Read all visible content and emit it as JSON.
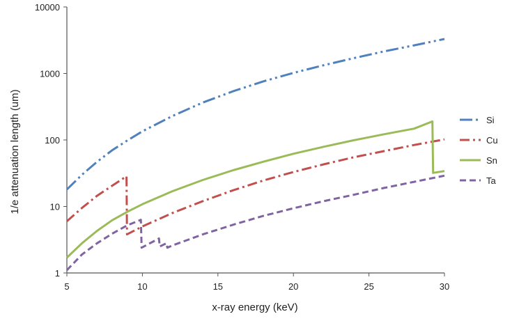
{
  "chart_data": {
    "type": "line",
    "title": "",
    "xlabel": "x-ray energy (keV)",
    "ylabel": "1/e attenuation length (um)",
    "xlim": [
      5,
      30
    ],
    "ylim": [
      1,
      10000
    ],
    "yscale": "log",
    "grid": false,
    "legend_position": "right",
    "x_ticks": [
      "5",
      "10",
      "15",
      "20",
      "25",
      "30"
    ],
    "y_ticks": [
      "1",
      "10",
      "100",
      "1000",
      "10000"
    ],
    "series": [
      {
        "name": "Si",
        "color": "#4f81bd",
        "dash": "dash-dot-dot",
        "points": [
          [
            5,
            18
          ],
          [
            6,
            30
          ],
          [
            7,
            47
          ],
          [
            8,
            70
          ],
          [
            9,
            98
          ],
          [
            10,
            135
          ],
          [
            12,
            230
          ],
          [
            14,
            365
          ],
          [
            16,
            540
          ],
          [
            18,
            760
          ],
          [
            20,
            1020
          ],
          [
            22,
            1330
          ],
          [
            24,
            1700
          ],
          [
            26,
            2150
          ],
          [
            28,
            2650
          ],
          [
            30,
            3300
          ]
        ]
      },
      {
        "name": "Cu",
        "color": "#c0504d",
        "dash": "dash-dot",
        "points": [
          [
            5,
            6
          ],
          [
            6,
            9.5
          ],
          [
            7,
            14.5
          ],
          [
            8,
            20.5
          ],
          [
            8.95,
            28.5
          ],
          [
            8.98,
            3.8
          ],
          [
            10,
            5.0
          ],
          [
            12,
            8.0
          ],
          [
            14,
            12
          ],
          [
            16,
            17.5
          ],
          [
            18,
            24.5
          ],
          [
            20,
            33
          ],
          [
            22,
            43
          ],
          [
            24,
            55
          ],
          [
            26,
            68
          ],
          [
            28,
            84
          ],
          [
            30,
            102
          ]
        ]
      },
      {
        "name": "Sn",
        "color": "#9bbb59",
        "dash": "solid",
        "points": [
          [
            5,
            1.7
          ],
          [
            6,
            2.8
          ],
          [
            7,
            4.3
          ],
          [
            8,
            6.2
          ],
          [
            9,
            8.3
          ],
          [
            10,
            10.8
          ],
          [
            12,
            17
          ],
          [
            14,
            25
          ],
          [
            16,
            35
          ],
          [
            18,
            47
          ],
          [
            20,
            62
          ],
          [
            22,
            79
          ],
          [
            24,
            99
          ],
          [
            26,
            122
          ],
          [
            28,
            148
          ],
          [
            29.2,
            190
          ],
          [
            29.25,
            32
          ],
          [
            30,
            34
          ]
        ]
      },
      {
        "name": "Ta",
        "color": "#8064a2",
        "dash": "dash",
        "points": [
          [
            5,
            1.1
          ],
          [
            6,
            1.9
          ],
          [
            7,
            2.8
          ],
          [
            8,
            3.9
          ],
          [
            9,
            5.2
          ],
          [
            9.9,
            6.3
          ],
          [
            9.95,
            2.4
          ],
          [
            11.1,
            3.3
          ],
          [
            11.15,
            2.5
          ],
          [
            11.6,
            2.8
          ],
          [
            11.65,
            2.4
          ],
          [
            12,
            2.6
          ],
          [
            14,
            3.8
          ],
          [
            16,
            5.3
          ],
          [
            18,
            7.2
          ],
          [
            20,
            9.4
          ],
          [
            22,
            12
          ],
          [
            24,
            15
          ],
          [
            26,
            19
          ],
          [
            28,
            23.5
          ],
          [
            30,
            29
          ]
        ]
      }
    ]
  }
}
